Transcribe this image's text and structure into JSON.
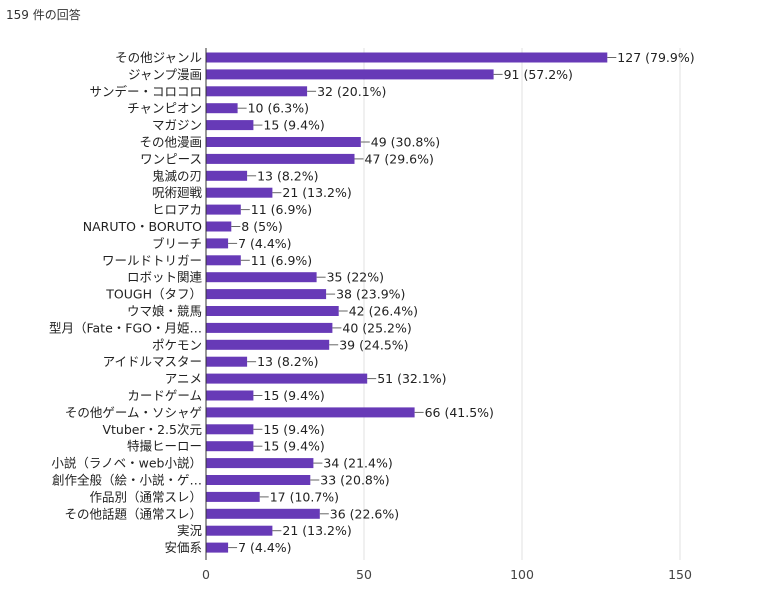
{
  "summary": {
    "response_count_text": "159 件の回答"
  },
  "colors": {
    "bar": "#673ab7",
    "grid": "#e0e0e0",
    "axis": "#333333",
    "leader": "#666666"
  },
  "chart_data": {
    "type": "bar",
    "orientation": "horizontal",
    "categories": [
      "その他ジャンル",
      "ジャンプ漫画",
      "サンデー・コロコロ",
      "チャンピオン",
      "マガジン",
      "その他漫画",
      "ワンピース",
      "鬼滅の刃",
      "呪術廻戦",
      "ヒロアカ",
      "NARUTO・BORUTO",
      "ブリーチ",
      "ワールドトリガー",
      "ロボット関連",
      "TOUGH（タフ）",
      "ウマ娘・競馬",
      "型月（Fate・FGO・月姫…",
      "ポケモン",
      "アイドルマスター",
      "アニメ",
      "カードゲーム",
      "その他ゲーム・ソシャゲ",
      "Vtuber・2.5次元",
      "特撮ヒーロー",
      "小説（ラノベ・web小説）",
      "創作全般（絵・小説・ゲ…",
      "作品別（通常スレ）",
      "その他話題（通常スレ）",
      "実況",
      "安価系"
    ],
    "values": [
      127,
      91,
      32,
      10,
      15,
      49,
      47,
      13,
      21,
      11,
      8,
      7,
      11,
      35,
      38,
      42,
      40,
      39,
      13,
      51,
      15,
      66,
      15,
      15,
      34,
      33,
      17,
      36,
      21,
      7
    ],
    "value_labels": [
      "127 (79.9%)",
      "91 (57.2%)",
      "32 (20.1%)",
      "10 (6.3%)",
      "15 (9.4%)",
      "49 (30.8%)",
      "47 (29.6%)",
      "13 (8.2%)",
      "21 (13.2%)",
      "11 (6.9%)",
      "8 (5%)",
      "7 (4.4%)",
      "11 (6.9%)",
      "35 (22%)",
      "38 (23.9%)",
      "42 (26.4%)",
      "40 (25.2%)",
      "39 (24.5%)",
      "13 (8.2%)",
      "51 (32.1%)",
      "15 (9.4%)",
      "66 (41.5%)",
      "15 (9.4%)",
      "15 (9.4%)",
      "34 (21.4%)",
      "33 (20.8%)",
      "17 (10.7%)",
      "36 (22.6%)",
      "21 (13.2%)",
      "7 (4.4%)"
    ],
    "xlim": [
      0,
      150
    ],
    "xticks": [
      0,
      50,
      100,
      150
    ],
    "xtick_labels": [
      "0",
      "50",
      "100",
      "150"
    ],
    "grid": true,
    "legend": "none"
  }
}
